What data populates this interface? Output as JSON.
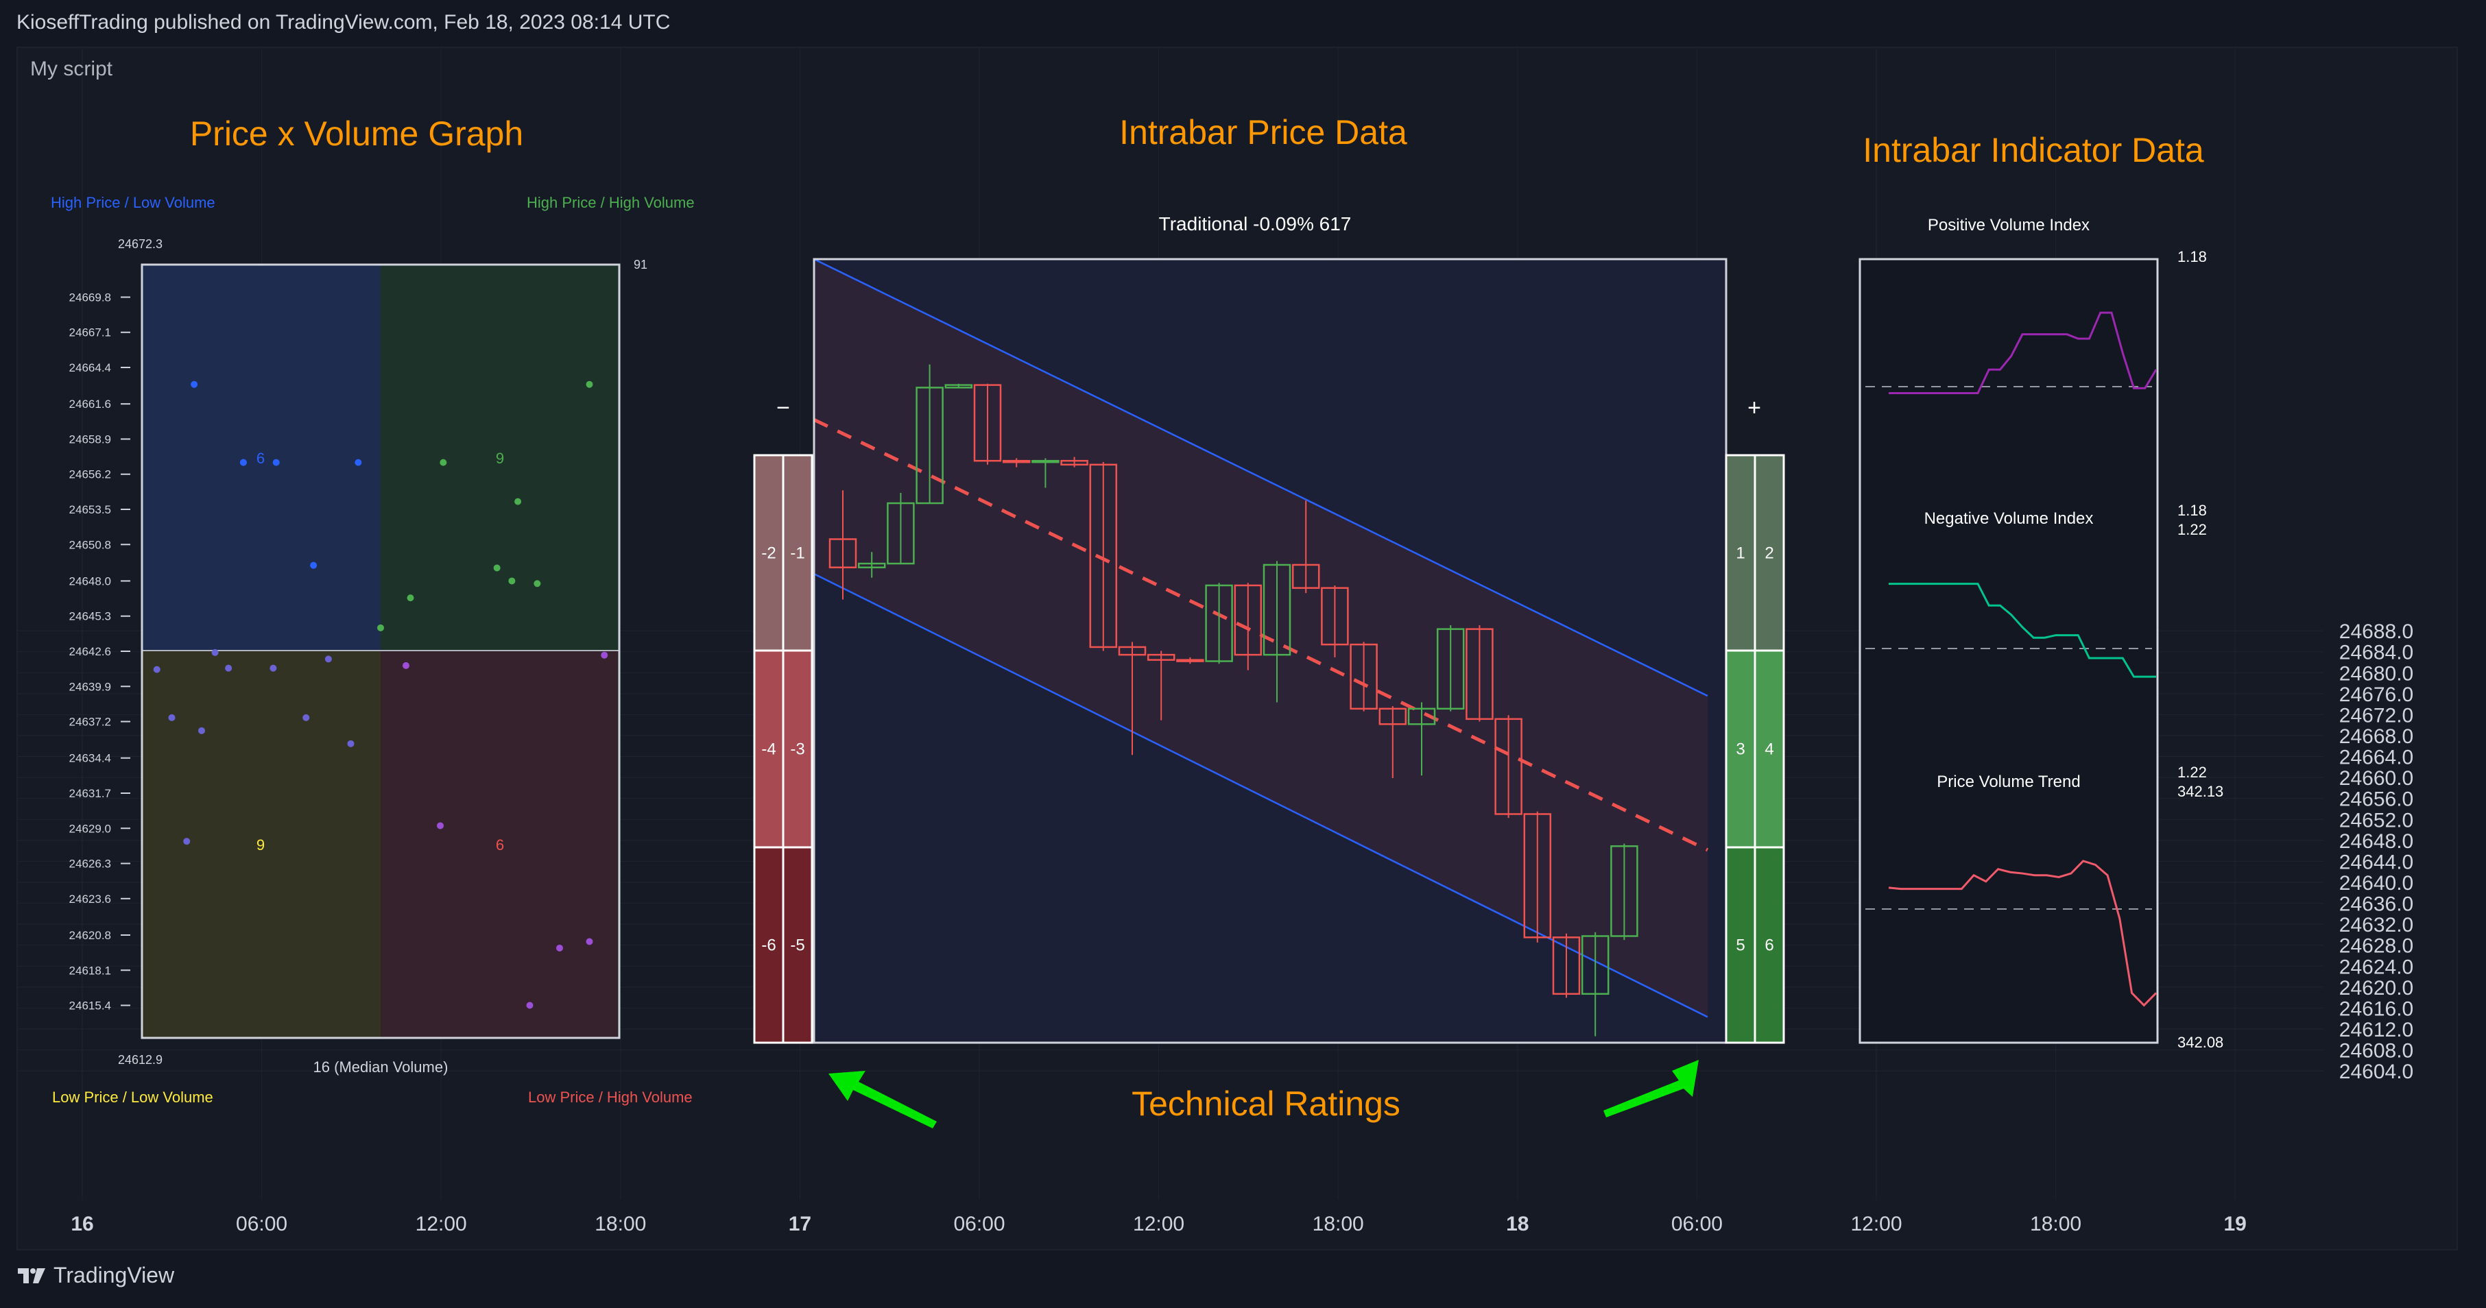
{
  "header": {
    "published": "KioseffTrading published on TradingView.com, Feb 18, 2023 08:14 UTC"
  },
  "script_name": "My script",
  "footer": {
    "brand": "TradingView"
  },
  "titles": {
    "pv": "Price x Volume Graph",
    "intrabar": "Intrabar Price Data",
    "indicator": "Intrabar Indicator Data",
    "ratings": "Technical Ratings"
  },
  "colors": {
    "bg": "#131722",
    "panel": "#161a25",
    "grid": "#2a2e39",
    "up": "#4caf50",
    "down": "#ef5350",
    "orange": "#ff9800",
    "blue": "#2962ff",
    "purple": "#9c27b0",
    "teal": "#00c48c",
    "salmon": "#f05a6a"
  },
  "chart_data": [
    {
      "type": "scatter",
      "title": "Price x Volume Graph",
      "quadrant_labels": {
        "tl": "High Price / Low Volume",
        "tr": "High Price / High Volume",
        "bl": "Low Price / Low Volume",
        "br": "Low Price / High Volume"
      },
      "quadrant_counts": {
        "tl": "6",
        "tr": "9",
        "bl": "9",
        "br": "6"
      },
      "price_max_label": "24672.3",
      "price_min_label": "24612.9",
      "volume_max_label": "91",
      "median_label": "16 (Median Volume)",
      "y_ticks": [
        "24669.8",
        "24667.1",
        "24664.4",
        "24661.6",
        "24658.9",
        "24656.2",
        "24653.5",
        "24650.8",
        "24648.0",
        "24645.3",
        "24642.6",
        "24639.9",
        "24637.2",
        "24634.4",
        "24631.7",
        "24629.0",
        "24626.3",
        "24623.6",
        "24620.8",
        "24618.1",
        "24615.4"
      ],
      "xlim": [
        0,
        32
      ],
      "ylim": [
        24612.9,
        24672.3
      ],
      "median_x": 16,
      "median_y": 24642.6,
      "points": [
        {
          "x": 3.5,
          "y": 24663.1
        },
        {
          "x": 6.8,
          "y": 24657.1
        },
        {
          "x": 6.8,
          "y": 24657.1
        },
        {
          "x": 9.0,
          "y": 24657.1
        },
        {
          "x": 14.5,
          "y": 24657.1
        },
        {
          "x": 20.2,
          "y": 24657.1
        },
        {
          "x": 30.0,
          "y": 24663.1
        },
        {
          "x": 25.2,
          "y": 24654.1
        },
        {
          "x": 23.8,
          "y": 24649.0
        },
        {
          "x": 24.8,
          "y": 24648.0
        },
        {
          "x": 26.5,
          "y": 24647.8
        },
        {
          "x": 18.0,
          "y": 24646.7
        },
        {
          "x": 11.5,
          "y": 24649.2
        },
        {
          "x": 16.0,
          "y": 24644.4
        },
        {
          "x": 31.0,
          "y": 24642.3
        },
        {
          "x": 1.0,
          "y": 24641.2
        },
        {
          "x": 4.9,
          "y": 24642.5
        },
        {
          "x": 5.8,
          "y": 24641.3
        },
        {
          "x": 8.8,
          "y": 24641.3
        },
        {
          "x": 12.5,
          "y": 24642.0
        },
        {
          "x": 17.7,
          "y": 24641.5
        },
        {
          "x": 2.0,
          "y": 24637.5
        },
        {
          "x": 11.0,
          "y": 24637.5
        },
        {
          "x": 4.0,
          "y": 24636.5
        },
        {
          "x": 14.0,
          "y": 24635.5
        },
        {
          "x": 3.0,
          "y": 24628.0
        },
        {
          "x": 20.0,
          "y": 24629.2
        },
        {
          "x": 28.0,
          "y": 24619.8
        },
        {
          "x": 30.0,
          "y": 24620.3
        },
        {
          "x": 26.0,
          "y": 24615.4
        }
      ]
    },
    {
      "type": "candlestick",
      "title": "Intrabar Price Data",
      "subtitle": "Traditional -0.09% 617",
      "ylim": [
        24612,
        24673
      ],
      "candles": [
        {
          "o": 24651.2,
          "h": 24655.0,
          "l": 24646.5,
          "c": 24649.0
        },
        {
          "o": 24649.0,
          "h": 24650.2,
          "l": 24648.2,
          "c": 24649.3
        },
        {
          "o": 24649.3,
          "h": 24654.8,
          "l": 24649.3,
          "c": 24654.0
        },
        {
          "o": 24654.0,
          "h": 24664.8,
          "l": 24654.0,
          "c": 24663.0
        },
        {
          "o": 24663.0,
          "h": 24663.3,
          "l": 24663.0,
          "c": 24663.2
        },
        {
          "o": 24663.2,
          "h": 24663.3,
          "l": 24657.0,
          "c": 24657.3
        },
        {
          "o": 24657.3,
          "h": 24657.5,
          "l": 24656.8,
          "c": 24657.2
        },
        {
          "o": 24657.2,
          "h": 24657.5,
          "l": 24655.2,
          "c": 24657.3
        },
        {
          "o": 24657.3,
          "h": 24657.6,
          "l": 24656.8,
          "c": 24657.0
        },
        {
          "o": 24657.0,
          "h": 24657.2,
          "l": 24642.5,
          "c": 24642.8
        },
        {
          "o": 24642.8,
          "h": 24643.2,
          "l": 24634.4,
          "c": 24642.2
        },
        {
          "o": 24642.2,
          "h": 24642.5,
          "l": 24637.1,
          "c": 24641.8
        },
        {
          "o": 24641.8,
          "h": 24642.0,
          "l": 24641.5,
          "c": 24641.7
        },
        {
          "o": 24641.7,
          "h": 24647.8,
          "l": 24641.5,
          "c": 24647.6
        },
        {
          "o": 24647.6,
          "h": 24647.8,
          "l": 24641.0,
          "c": 24642.2
        },
        {
          "o": 24642.2,
          "h": 24649.5,
          "l": 24638.5,
          "c": 24649.2
        },
        {
          "o": 24649.2,
          "h": 24654.2,
          "l": 24647.0,
          "c": 24647.4
        },
        {
          "o": 24647.4,
          "h": 24647.6,
          "l": 24642.0,
          "c": 24643.0
        },
        {
          "o": 24643.0,
          "h": 24643.2,
          "l": 24637.8,
          "c": 24638.0
        },
        {
          "o": 24638.0,
          "h": 24638.2,
          "l": 24632.6,
          "c": 24636.8
        },
        {
          "o": 24636.8,
          "h": 24638.5,
          "l": 24632.8,
          "c": 24638.0
        },
        {
          "o": 24638.0,
          "h": 24644.5,
          "l": 24637.8,
          "c": 24644.2
        },
        {
          "o": 24644.2,
          "h": 24644.5,
          "l": 24637.0,
          "c": 24637.2
        },
        {
          "o": 24637.2,
          "h": 24637.5,
          "l": 24629.5,
          "c": 24629.8
        },
        {
          "o": 24629.8,
          "h": 24630.0,
          "l": 24619.8,
          "c": 24620.2
        },
        {
          "o": 24620.2,
          "h": 24620.5,
          "l": 24615.5,
          "c": 24615.8
        },
        {
          "o": 24615.8,
          "h": 24620.6,
          "l": 24612.5,
          "c": 24620.3
        },
        {
          "o": 24620.3,
          "h": 24627.5,
          "l": 24620.0,
          "c": 24627.3
        }
      ],
      "regression": {
        "start": 24660.5,
        "end": 24627.0,
        "upper_start": 24673.0,
        "upper_end": 24639.0,
        "lower_start": 24648.5,
        "lower_end": 24614.0
      }
    },
    {
      "type": "ratings",
      "title": "Technical Ratings",
      "minus_label": "−",
      "plus_label": "+",
      "negative": [
        [
          "-2",
          "-1"
        ],
        [
          "-4",
          "-3"
        ],
        [
          "-6",
          "-5"
        ]
      ],
      "positive": [
        [
          "1",
          "2"
        ],
        [
          "3",
          "4"
        ],
        [
          "5",
          "6"
        ]
      ]
    },
    {
      "type": "line",
      "title": "Intrabar Indicator Data",
      "panels": [
        {
          "name": "Positive Volume Index",
          "top_label": "1.18",
          "bottom_label": "1.18",
          "color": "#9c27b0",
          "values": [
            0.9,
            0.9,
            0.9,
            0.9,
            0.9,
            0.9,
            0.9,
            0.9,
            0.9,
            1.28,
            1.28,
            1.5,
            1.85,
            1.85,
            1.85,
            1.85,
            1.85,
            1.78,
            1.78,
            2.2,
            2.2,
            1.55,
            0.98,
            0.98,
            1.28
          ]
        },
        {
          "name": "Negative Volume Index",
          "top_label": "1.22",
          "bottom_label": "1.22",
          "color": "#00c48c",
          "values": [
            2.05,
            2.05,
            2.05,
            2.05,
            2.05,
            2.05,
            2.05,
            2.05,
            2.05,
            1.7,
            1.7,
            1.55,
            1.35,
            1.18,
            1.18,
            1.22,
            1.22,
            1.22,
            0.85,
            0.85,
            0.85,
            0.85,
            0.55,
            0.55,
            0.55
          ]
        },
        {
          "name": "Price Volume Trend",
          "top_label": "342.13",
          "bottom_label": "342.08",
          "color": "#f05a6a",
          "values": [
            1.35,
            1.33,
            1.33,
            1.33,
            1.33,
            1.33,
            1.33,
            1.55,
            1.45,
            1.65,
            1.6,
            1.58,
            1.55,
            1.55,
            1.52,
            1.58,
            1.78,
            1.72,
            1.55,
            0.85,
            -0.35,
            -0.55,
            -0.35
          ]
        }
      ]
    },
    {
      "type": "axes",
      "y_ticks": [
        "24688.0",
        "24684.0",
        "24680.0",
        "24676.0",
        "24672.0",
        "24668.0",
        "24664.0",
        "24660.0",
        "24656.0",
        "24652.0",
        "24648.0",
        "24644.0",
        "24640.0",
        "24636.0",
        "24632.0",
        "24628.0",
        "24624.0",
        "24620.0",
        "24616.0",
        "24612.0",
        "24608.0",
        "24604.0"
      ],
      "y_values": [
        24688,
        24684,
        24680,
        24676,
        24672,
        24668,
        24664,
        24660,
        24656,
        24652,
        24648,
        24644,
        24640,
        24636,
        24632,
        24628,
        24624,
        24620,
        24616,
        24612,
        24608,
        24604
      ],
      "x_ticks": [
        {
          "label": "16",
          "major": true,
          "t": 0
        },
        {
          "label": "06:00",
          "major": false,
          "t": 6
        },
        {
          "label": "12:00",
          "major": false,
          "t": 12
        },
        {
          "label": "18:00",
          "major": false,
          "t": 18
        },
        {
          "label": "17",
          "major": true,
          "t": 24
        },
        {
          "label": "06:00",
          "major": false,
          "t": 30
        },
        {
          "label": "12:00",
          "major": false,
          "t": 36
        },
        {
          "label": "18:00",
          "major": false,
          "t": 42
        },
        {
          "label": "18",
          "major": true,
          "t": 48
        },
        {
          "label": "06:00",
          "major": false,
          "t": 54
        },
        {
          "label": "12:00",
          "major": false,
          "t": 60
        },
        {
          "label": "18:00",
          "major": false,
          "t": 66
        },
        {
          "label": "19",
          "major": true,
          "t": 72
        }
      ]
    }
  ]
}
